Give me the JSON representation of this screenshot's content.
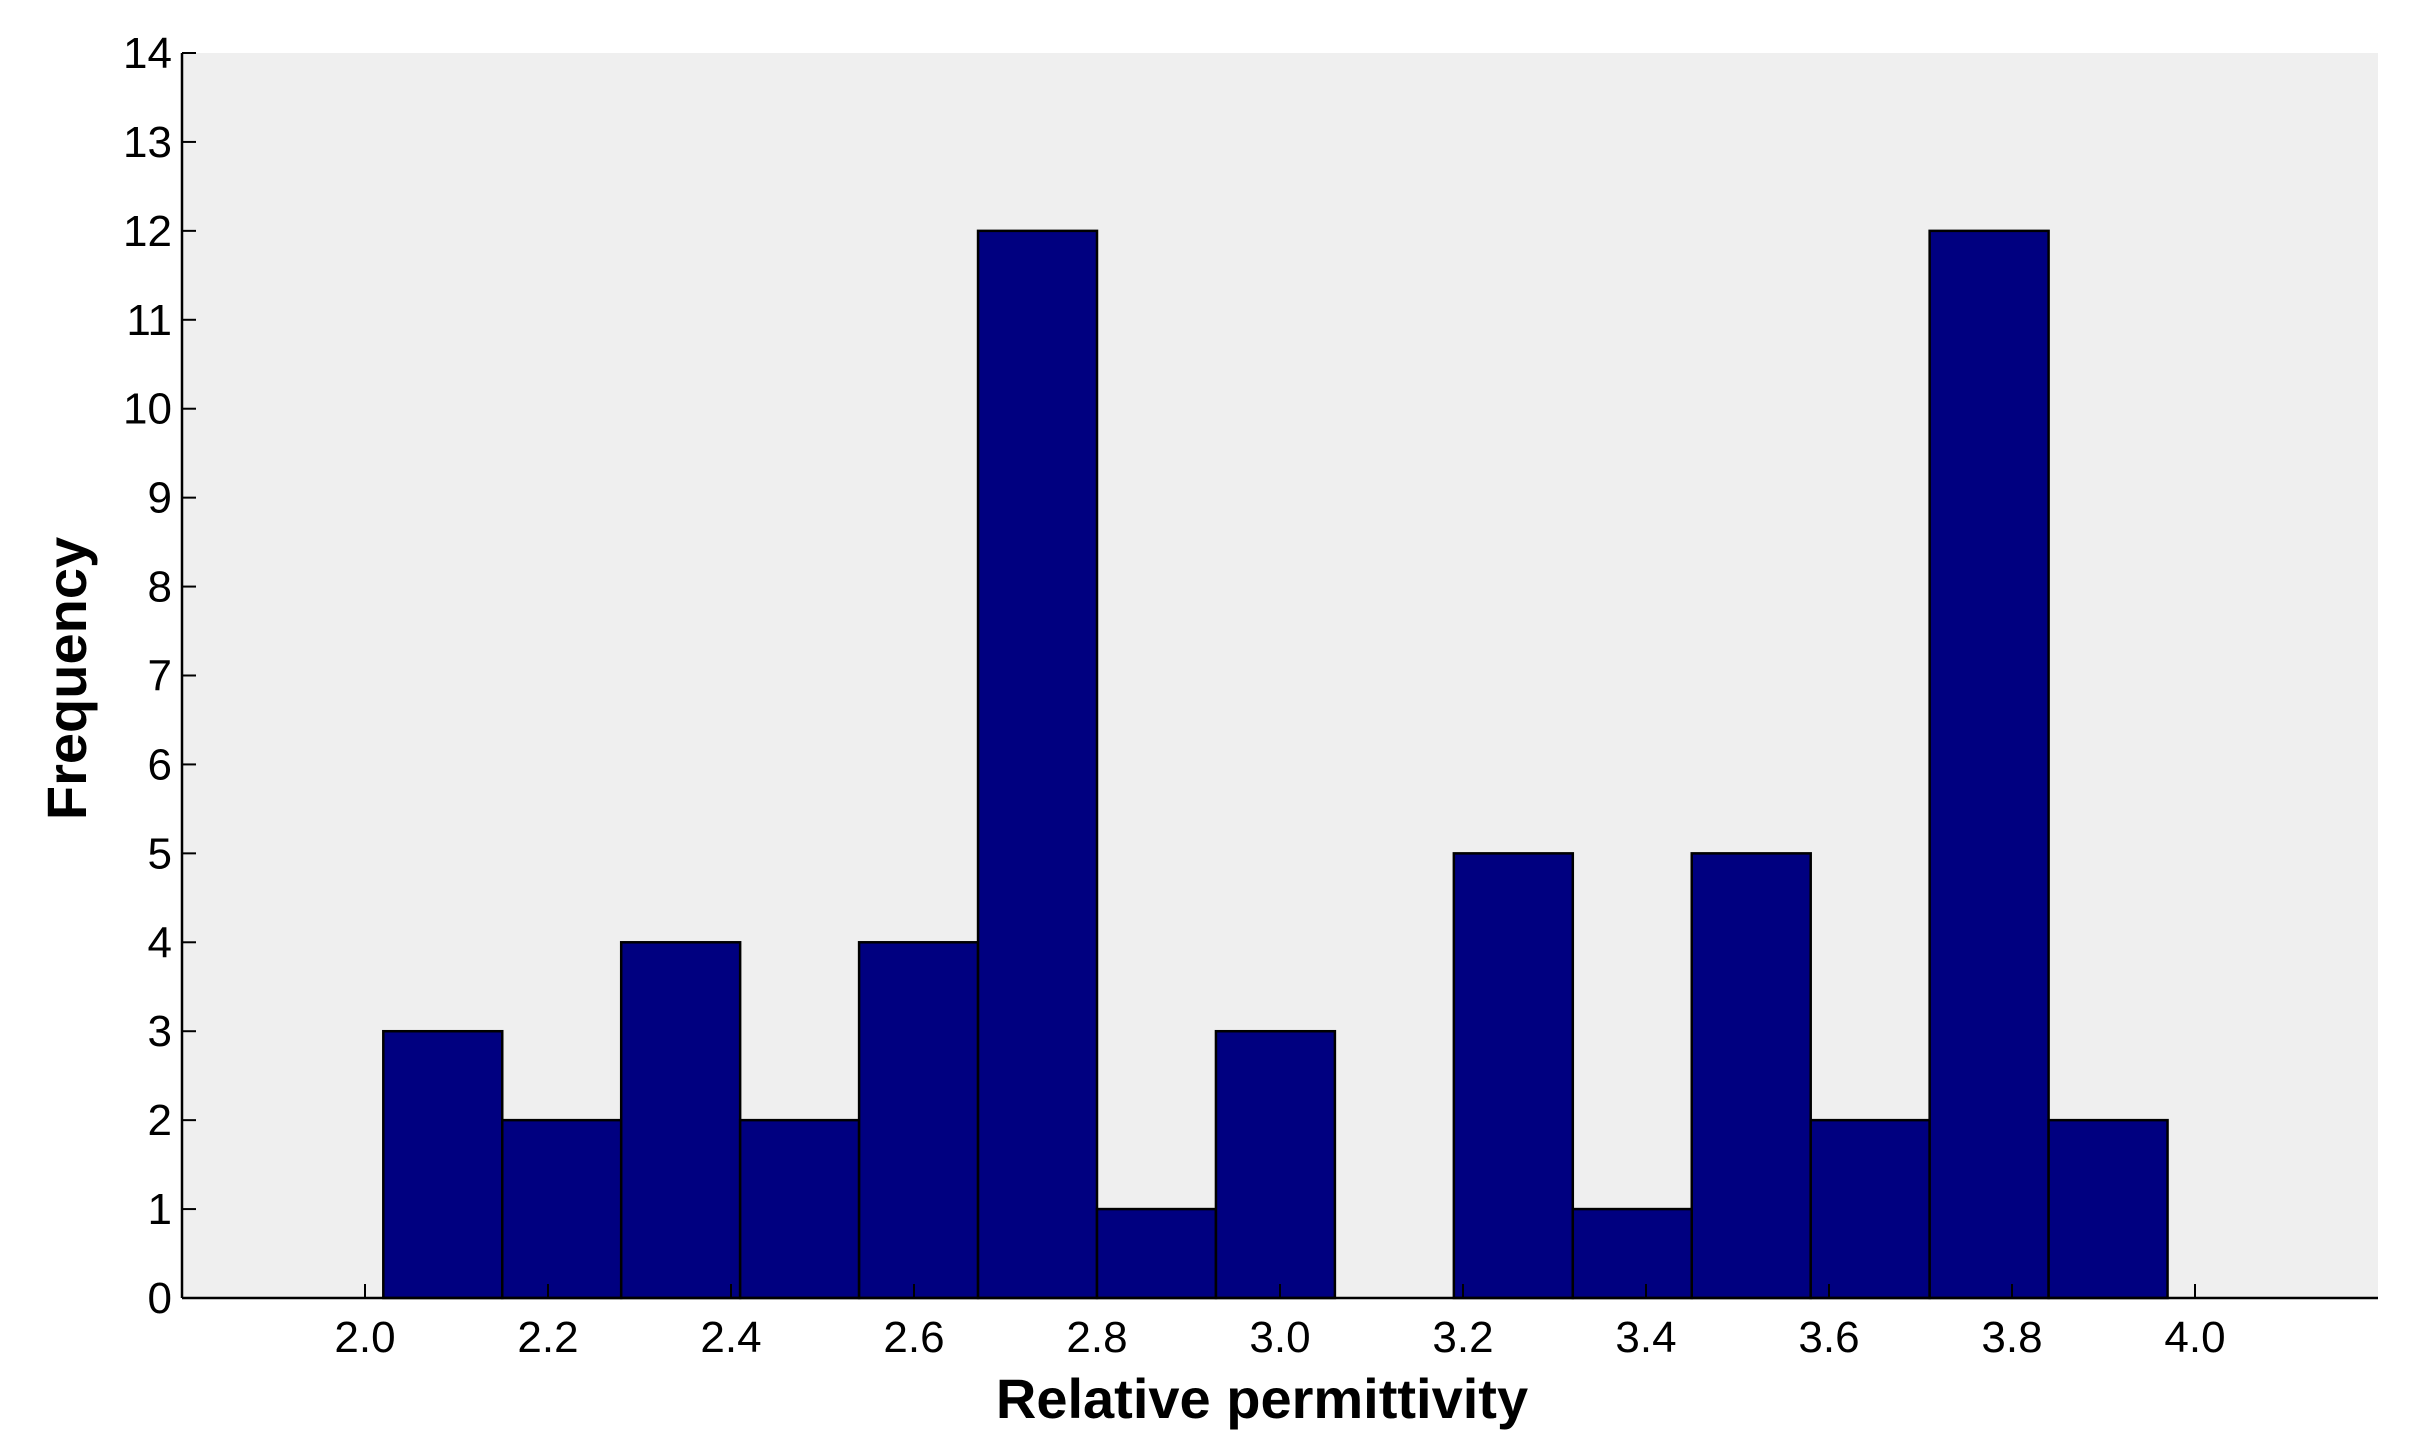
{
  "chart_data": {
    "type": "bar",
    "title": "",
    "xlabel": "Relative permittivity",
    "ylabel": "Frequency",
    "x_range": [
      1.8,
      4.2
    ],
    "ylim": [
      0,
      14
    ],
    "grid": false,
    "bin_width": 0.13,
    "bins": [
      {
        "center": 2.085,
        "value": 3
      },
      {
        "center": 2.215,
        "value": 2
      },
      {
        "center": 2.345,
        "value": 4
      },
      {
        "center": 2.475,
        "value": 2
      },
      {
        "center": 2.605,
        "value": 4
      },
      {
        "center": 2.735,
        "value": 12
      },
      {
        "center": 2.865,
        "value": 1
      },
      {
        "center": 2.995,
        "value": 3
      },
      {
        "center": 3.125,
        "value": 0
      },
      {
        "center": 3.255,
        "value": 5
      },
      {
        "center": 3.385,
        "value": 1
      },
      {
        "center": 3.515,
        "value": 5
      },
      {
        "center": 3.645,
        "value": 2
      },
      {
        "center": 3.775,
        "value": 12
      },
      {
        "center": 3.905,
        "value": 2
      }
    ],
    "x_ticks": [
      "2.0",
      "2.2",
      "2.4",
      "2.6",
      "2.8",
      "3.0",
      "3.2",
      "3.4",
      "3.6",
      "3.8",
      "4.0"
    ],
    "y_ticks": [
      "0",
      "1",
      "2",
      "3",
      "4",
      "5",
      "6",
      "7",
      "8",
      "9",
      "10",
      "11",
      "12",
      "13",
      "14"
    ],
    "colors": {
      "bar_fill": "#000080",
      "bar_edge": "#000000",
      "plot_background": "#efefef",
      "axis": "#000000"
    }
  }
}
